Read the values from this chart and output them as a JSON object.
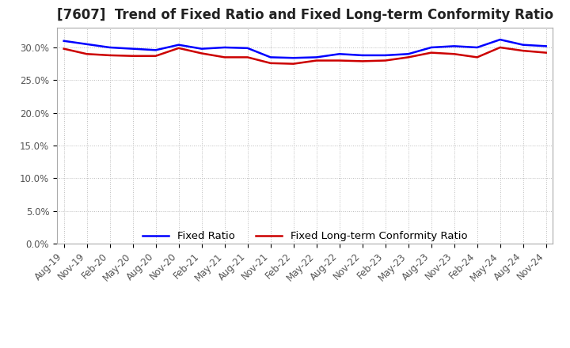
{
  "title": "[7607]  Trend of Fixed Ratio and Fixed Long-term Conformity Ratio",
  "x_labels": [
    "Aug-19",
    "Nov-19",
    "Feb-20",
    "May-20",
    "Aug-20",
    "Nov-20",
    "Feb-21",
    "May-21",
    "Aug-21",
    "Nov-21",
    "Feb-22",
    "May-22",
    "Aug-22",
    "Nov-22",
    "Feb-23",
    "May-23",
    "Aug-23",
    "Nov-23",
    "Feb-24",
    "May-24",
    "Aug-24",
    "Nov-24"
  ],
  "fixed_ratio": [
    31.0,
    30.5,
    30.0,
    29.8,
    29.6,
    30.4,
    29.8,
    30.0,
    29.9,
    28.5,
    28.4,
    28.5,
    29.0,
    28.8,
    28.8,
    29.0,
    30.0,
    30.2,
    30.0,
    31.2,
    30.4,
    30.2
  ],
  "fixed_lt_ratio": [
    29.8,
    29.0,
    28.8,
    28.7,
    28.7,
    29.9,
    29.1,
    28.5,
    28.5,
    27.6,
    27.5,
    28.0,
    28.0,
    27.9,
    28.0,
    28.5,
    29.2,
    29.0,
    28.5,
    30.0,
    29.5,
    29.2
  ],
  "ylim_max": 33,
  "ytick_vals": [
    0,
    5,
    10,
    15,
    20,
    25,
    30
  ],
  "line_color_fixed": "#0000ff",
  "line_color_lt": "#cc0000",
  "background_color": "#ffffff",
  "grid_color": "#bbbbbb",
  "legend_fixed": "Fixed Ratio",
  "legend_lt": "Fixed Long-term Conformity Ratio",
  "title_fontsize": 12,
  "tick_fontsize": 8.5,
  "legend_fontsize": 9.5
}
